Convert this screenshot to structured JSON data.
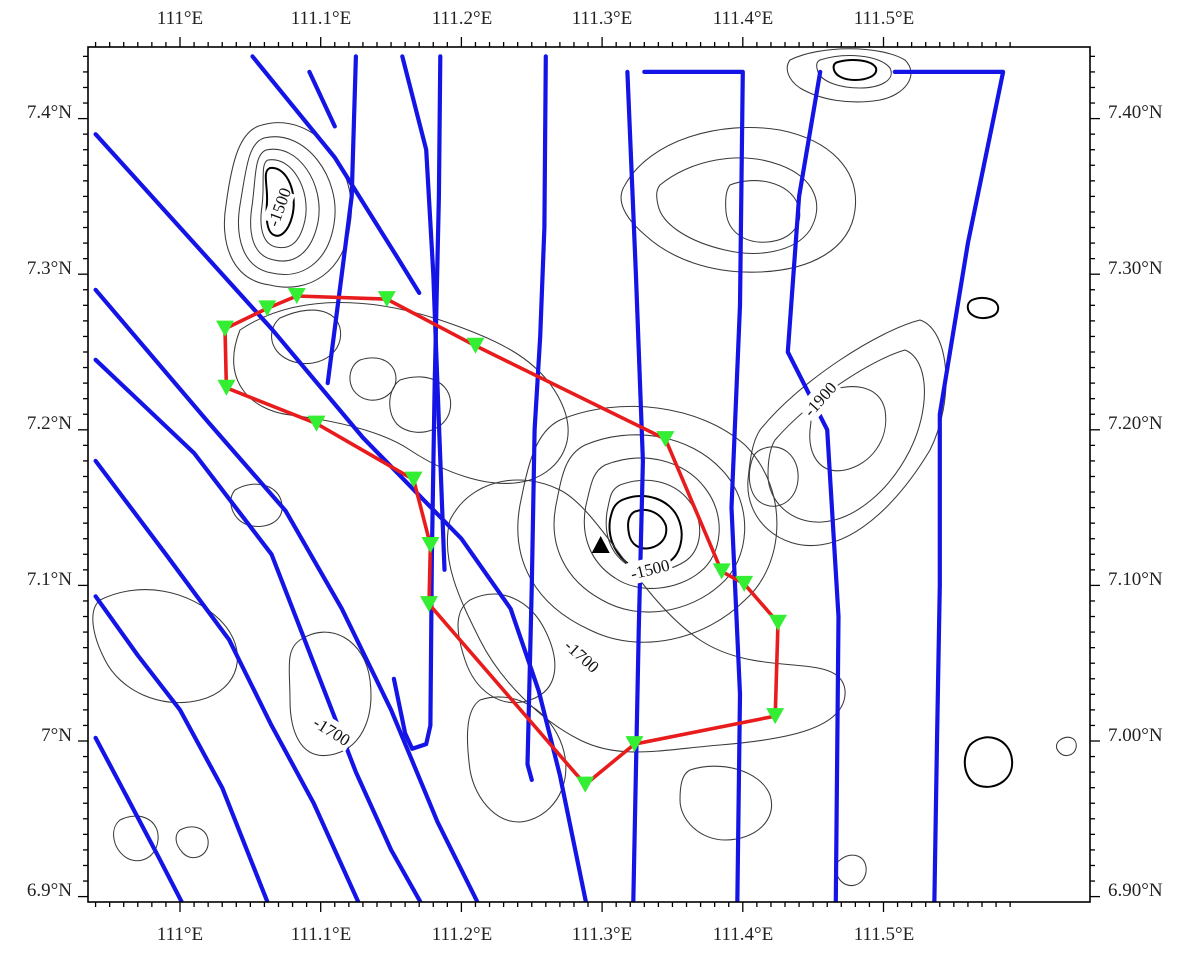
{
  "map": {
    "x_ticks": [
      "111°E",
      "111.1°E",
      "111.2°E",
      "111.3°E",
      "111.4°E",
      "111.5°E"
    ],
    "y_ticks_left": [
      "6.9°N",
      "7°N",
      "7.1°N",
      "7.2°N",
      "7.3°N",
      "7.4°N"
    ],
    "y_ticks_right": [
      "6.90°N",
      "7.00°N",
      "7.10°N",
      "7.20°N",
      "7.30°N",
      "7.40°N"
    ],
    "contour_labels": [
      "-1500",
      "-1500",
      "-1700",
      "-1700",
      "-1900"
    ],
    "colors": {
      "track_lines": "#1414e6",
      "station_route": "#e81c1c",
      "station_marker": "#33ee33",
      "contours": "#3a3a3a",
      "peak_marker": "#000000"
    },
    "legend": "none",
    "stations": [
      {
        "lon": 111.032,
        "lat": 7.265
      },
      {
        "lon": 111.062,
        "lat": 7.278
      },
      {
        "lon": 111.083,
        "lat": 7.286
      },
      {
        "lon": 111.147,
        "lat": 7.284
      },
      {
        "lon": 111.21,
        "lat": 7.254
      },
      {
        "lon": 111.345,
        "lat": 7.194
      },
      {
        "lon": 111.385,
        "lat": 7.109
      },
      {
        "lon": 111.401,
        "lat": 7.101
      },
      {
        "lon": 111.425,
        "lat": 7.076
      },
      {
        "lon": 111.423,
        "lat": 7.016
      },
      {
        "lon": 111.323,
        "lat": 6.998
      },
      {
        "lon": 111.288,
        "lat": 6.972
      },
      {
        "lon": 111.177,
        "lat": 7.088
      },
      {
        "lon": 111.178,
        "lat": 7.126
      },
      {
        "lon": 111.166,
        "lat": 7.168
      },
      {
        "lon": 111.097,
        "lat": 7.204
      },
      {
        "lon": 111.033,
        "lat": 7.227
      }
    ],
    "peak": {
      "lon": 111.299,
      "lat": 7.126
    },
    "track_lines": [
      [
        [
          110.94,
          7.39
        ],
        [
          111.065,
          7.265
        ],
        [
          111.13,
          7.195
        ],
        [
          111.2,
          7.13
        ],
        [
          111.235,
          7.085
        ],
        [
          111.255,
          7.032
        ],
        [
          111.27,
          6.978
        ],
        [
          111.29,
          6.89
        ]
      ],
      [
        [
          110.94,
          7.29
        ],
        [
          111.02,
          7.205
        ],
        [
          111.075,
          7.148
        ],
        [
          111.115,
          7.085
        ],
        [
          111.15,
          7.02
        ],
        [
          111.183,
          6.948
        ],
        [
          111.215,
          6.89
        ]
      ],
      [
        [
          110.94,
          7.245
        ],
        [
          111.01,
          7.185
        ],
        [
          111.065,
          7.12
        ],
        [
          111.095,
          7.05
        ],
        [
          111.125,
          6.98
        ],
        [
          111.15,
          6.93
        ],
        [
          111.175,
          6.89
        ]
      ],
      [
        [
          110.94,
          7.18
        ],
        [
          110.99,
          7.12
        ],
        [
          111.035,
          7.065
        ],
        [
          111.065,
          7.01
        ],
        [
          111.095,
          6.96
        ],
        [
          111.13,
          6.89
        ]
      ],
      [
        [
          110.94,
          7.093
        ],
        [
          110.97,
          7.055
        ],
        [
          111.0,
          7.02
        ],
        [
          111.03,
          6.97
        ],
        [
          111.065,
          6.89
        ]
      ],
      [
        [
          110.94,
          7.002
        ],
        [
          110.96,
          6.968
        ],
        [
          110.985,
          6.925
        ],
        [
          111.005,
          6.89
        ]
      ],
      [
        [
          111.0515,
          7.44
        ],
        [
          111.11,
          7.375
        ],
        [
          111.155,
          7.31
        ],
        [
          111.17,
          7.288
        ]
      ],
      [
        [
          111.158,
          7.44
        ],
        [
          111.175,
          7.38
        ],
        [
          111.18,
          7.3
        ],
        [
          111.183,
          7.228
        ],
        [
          111.188,
          7.11
        ]
      ],
      [
        [
          111.125,
          7.44
        ],
        [
          111.122,
          7.35
        ],
        [
          111.115,
          7.3
        ],
        [
          111.105,
          7.23
        ]
      ],
      [
        [
          111.092,
          7.43
        ],
        [
          111.11,
          7.395
        ]
      ],
      [
        [
          111.185,
          7.44
        ],
        [
          111.184,
          7.35
        ],
        [
          111.181,
          7.23
        ],
        [
          111.179,
          7.12
        ],
        [
          111.178,
          7.01
        ],
        [
          111.175,
          6.998
        ],
        [
          111.165,
          6.995
        ],
        [
          111.16,
          7.005
        ],
        [
          111.152,
          7.04
        ]
      ],
      [
        [
          111.26,
          7.44
        ],
        [
          111.259,
          7.33
        ],
        [
          111.256,
          7.26
        ],
        [
          111.252,
          7.2
        ],
        [
          111.25,
          7.1
        ],
        [
          111.247,
          6.985
        ],
        [
          111.25,
          6.975
        ]
      ],
      [
        [
          111.318,
          7.43
        ],
        [
          111.324,
          7.3
        ],
        [
          111.329,
          7.18
        ],
        [
          111.326,
          7.07
        ],
        [
          111.324,
          6.98
        ],
        [
          111.322,
          6.89
        ]
      ],
      [
        [
          111.33,
          7.43
        ],
        [
          111.4,
          7.43
        ],
        [
          111.398,
          7.28
        ],
        [
          111.392,
          7.15
        ],
        [
          111.398,
          7.03
        ],
        [
          111.396,
          6.89
        ]
      ],
      [
        [
          111.508,
          7.43
        ],
        [
          111.585,
          7.43
        ],
        [
          111.56,
          7.32
        ],
        [
          111.54,
          7.21
        ],
        [
          111.54,
          7.1
        ],
        [
          111.538,
          7.0
        ],
        [
          111.536,
          6.89
        ]
      ],
      [
        [
          111.455,
          7.43
        ],
        [
          111.44,
          7.35
        ],
        [
          111.432,
          7.25
        ],
        [
          111.46,
          7.2
        ],
        [
          111.468,
          7.08
        ],
        [
          111.466,
          6.89
        ]
      ]
    ]
  }
}
